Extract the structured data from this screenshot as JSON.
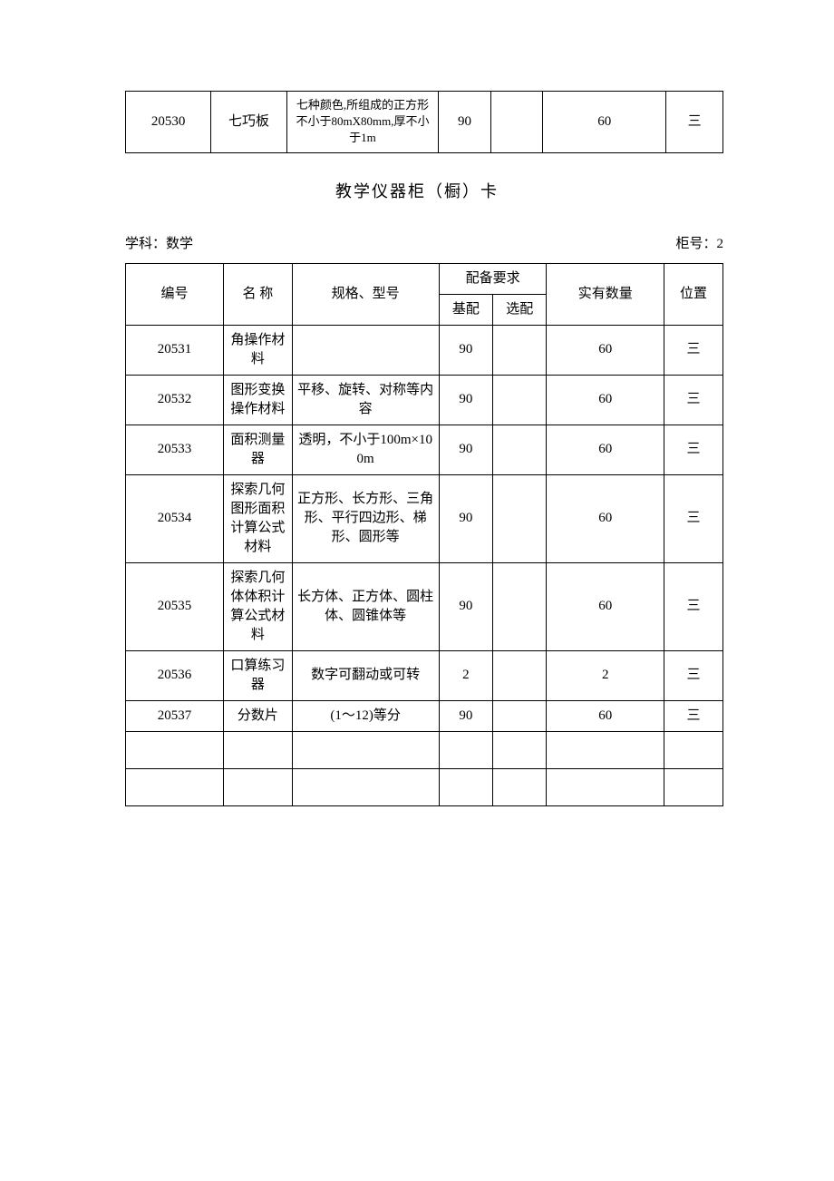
{
  "top_table": {
    "row": {
      "id": "20530",
      "name": "七巧板",
      "spec": "七种颜色,所组成的正方形不小于80mX80mm,厚不小于1m",
      "base": "90",
      "opt": "",
      "actual": "60",
      "pos": "三"
    }
  },
  "title": "教学仪器柜（橱）卡",
  "meta": {
    "subject_label": "学科：数学",
    "cabinet_label": "柜号：2"
  },
  "main_table": {
    "headers": {
      "id": "编号",
      "name": "名 称",
      "spec": "规格、型号",
      "req": "配备要求",
      "base": "基配",
      "opt": "选配",
      "actual": "实有数量",
      "pos": "位置"
    },
    "rows": [
      {
        "id": "20531",
        "name": "角操作材料",
        "spec": "",
        "base": "90",
        "opt": "",
        "actual": "60",
        "pos": "三"
      },
      {
        "id": "20532",
        "name": "图形变换操作材料",
        "spec": "平移、旋转、对称等内容",
        "base": "90",
        "opt": "",
        "actual": "60",
        "pos": "三"
      },
      {
        "id": "20533",
        "name": "面积测量器",
        "spec": "透明，不小于100m×100m",
        "base": "90",
        "opt": "",
        "actual": "60",
        "pos": "三"
      },
      {
        "id": "20534",
        "name": "探索几何图形面积计算公式材料",
        "spec": "正方形、长方形、三角形、平行四边形、梯形、圆形等",
        "base": "90",
        "opt": "",
        "actual": "60",
        "pos": "三"
      },
      {
        "id": "20535",
        "name": "探索几何体体积计算公式材料",
        "spec": "长方体、正方体、圆柱体、圆锥体等",
        "base": "90",
        "opt": "",
        "actual": "60",
        "pos": "三"
      },
      {
        "id": "20536",
        "name": "口算练习器",
        "spec": "数字可翻动或可转",
        "base": "2",
        "opt": "",
        "actual": "2",
        "pos": "三"
      },
      {
        "id": "20537",
        "name": "分数片",
        "spec": "(1～12)等分",
        "base": "90",
        "opt": "",
        "actual": "60",
        "pos": "三"
      },
      {
        "id": "",
        "name": "",
        "spec": "",
        "base": "",
        "opt": "",
        "actual": "",
        "pos": ""
      },
      {
        "id": "",
        "name": "",
        "spec": "",
        "base": "",
        "opt": "",
        "actual": "",
        "pos": ""
      }
    ]
  }
}
